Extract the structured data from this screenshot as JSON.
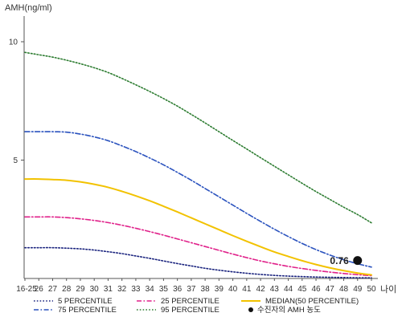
{
  "chart_data": {
    "type": "line",
    "ylabel": "AMH(ng/ml)",
    "xlabel": "나이",
    "ylim": [
      0,
      10.8
    ],
    "yticks": [
      10,
      5
    ],
    "categories": [
      "16-25",
      "26",
      "27",
      "28",
      "29",
      "30",
      "31",
      "32",
      "33",
      "34",
      "35",
      "36",
      "37",
      "38",
      "39",
      "40",
      "41",
      "42",
      "43",
      "44",
      "45",
      "46",
      "47",
      "48",
      "49",
      "50"
    ],
    "series": [
      {
        "name": "5 PERCENTILE",
        "color": "#1a237e",
        "style": "dotted",
        "values": [
          1.3,
          1.3,
          1.3,
          1.28,
          1.25,
          1.2,
          1.13,
          1.05,
          0.95,
          0.85,
          0.74,
          0.63,
          0.53,
          0.43,
          0.35,
          0.28,
          0.22,
          0.17,
          0.13,
          0.1,
          0.08,
          0.06,
          0.05,
          0.04,
          0.03,
          0.03
        ]
      },
      {
        "name": "25 PERCENTILE",
        "color": "#e0218a",
        "style": "dashdot",
        "values": [
          2.6,
          2.6,
          2.6,
          2.57,
          2.52,
          2.45,
          2.36,
          2.25,
          2.12,
          1.98,
          1.83,
          1.67,
          1.51,
          1.35,
          1.19,
          1.03,
          0.88,
          0.74,
          0.62,
          0.51,
          0.42,
          0.34,
          0.27,
          0.21,
          0.16,
          0.12
        ]
      },
      {
        "name": "MEDIAN(50 PERCENTILE)",
        "color": "#f2c200",
        "style": "solid",
        "values": [
          4.2,
          4.2,
          4.18,
          4.15,
          4.08,
          3.98,
          3.85,
          3.68,
          3.49,
          3.28,
          3.05,
          2.81,
          2.56,
          2.31,
          2.06,
          1.81,
          1.57,
          1.34,
          1.12,
          0.93,
          0.75,
          0.59,
          0.45,
          0.33,
          0.23,
          0.15
        ]
      },
      {
        "name": "75 PERCENTILE",
        "color": "#2a52be",
        "style": "dashdot",
        "values": [
          6.2,
          6.2,
          6.2,
          6.18,
          6.1,
          5.98,
          5.82,
          5.6,
          5.36,
          5.09,
          4.8,
          4.48,
          4.15,
          3.8,
          3.45,
          3.1,
          2.75,
          2.41,
          2.08,
          1.77,
          1.48,
          1.22,
          0.99,
          0.79,
          0.62,
          0.48
        ]
      },
      {
        "name": "95 PERCENTILE",
        "color": "#2e7d32",
        "style": "dotted",
        "values": [
          9.55,
          9.45,
          9.35,
          9.22,
          9.07,
          8.9,
          8.7,
          8.45,
          8.18,
          7.9,
          7.6,
          7.28,
          6.93,
          6.57,
          6.2,
          5.83,
          5.47,
          5.1,
          4.74,
          4.38,
          4.02,
          3.67,
          3.34,
          3.01,
          2.7,
          2.35
        ]
      }
    ],
    "point": {
      "name": "수진자의 AMH 농도",
      "x": "49",
      "y": 0.76,
      "label": "0.76"
    },
    "legend_position": "bottom",
    "grid": false
  }
}
